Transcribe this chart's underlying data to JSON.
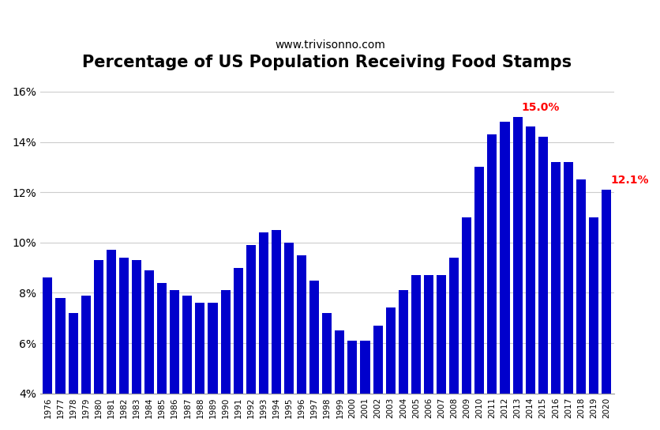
{
  "title": "Percentage of US Population Receiving Food Stamps",
  "subtitle": "www.trivisonno.com",
  "years": [
    1976,
    1977,
    1978,
    1979,
    1980,
    1981,
    1982,
    1983,
    1984,
    1985,
    1986,
    1987,
    1988,
    1989,
    1990,
    1991,
    1992,
    1993,
    1994,
    1995,
    1996,
    1997,
    1998,
    1999,
    2000,
    2001,
    2002,
    2003,
    2004,
    2005,
    2006,
    2007,
    2008,
    2009,
    2010,
    2011,
    2012,
    2013,
    2014,
    2015,
    2016,
    2017,
    2018,
    2019,
    2020
  ],
  "values": [
    8.6,
    7.8,
    7.2,
    7.9,
    9.3,
    9.7,
    9.4,
    9.3,
    8.9,
    8.4,
    8.1,
    7.9,
    7.6,
    7.6,
    8.1,
    9.0,
    9.9,
    10.4,
    10.5,
    10.0,
    9.5,
    8.5,
    7.2,
    6.5,
    6.1,
    6.1,
    6.7,
    7.4,
    8.1,
    8.7,
    8.7,
    8.7,
    9.4,
    11.0,
    13.0,
    14.3,
    14.8,
    15.0,
    14.6,
    14.2,
    13.2,
    13.2,
    12.5,
    11.0,
    12.1
  ],
  "bar_color": "#0000cc",
  "ylim": [
    4,
    16
  ],
  "yticks": [
    4,
    6,
    8,
    10,
    12,
    14,
    16
  ],
  "ytick_labels": [
    "4%",
    "6%",
    "8%",
    "10%",
    "12%",
    "14%",
    "16%"
  ],
  "annotation_max_year": 2013,
  "annotation_max_value": 15.0,
  "annotation_max_label": "15.0%",
  "annotation_last_year": 2020,
  "annotation_last_value": 12.1,
  "annotation_last_label": "12.1%",
  "annotation_color": "red",
  "title_fontsize": 15,
  "subtitle_fontsize": 10,
  "background_color": "#ffffff",
  "grid_color": "#cccccc"
}
